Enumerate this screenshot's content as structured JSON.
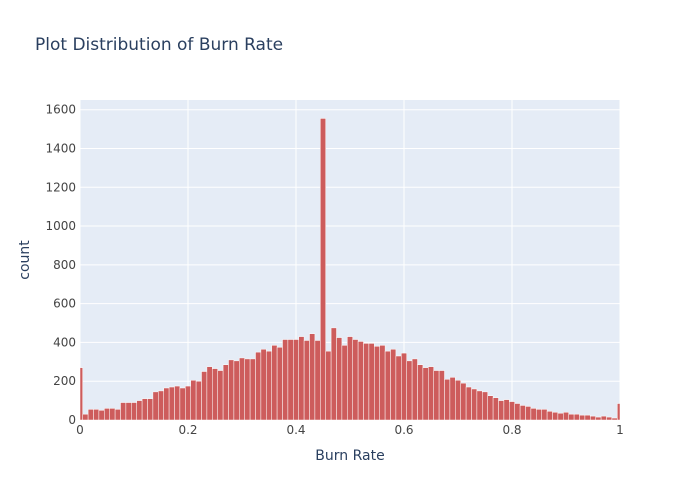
{
  "chart_data": {
    "type": "bar",
    "title": "Plot Distribution of Burn Rate",
    "xlabel": "Burn Rate",
    "ylabel": "count",
    "xlim": [
      0,
      1
    ],
    "ylim": [
      0,
      1650
    ],
    "x_ticks": [
      0,
      0.2,
      0.4,
      0.6,
      0.8,
      1
    ],
    "x_tick_labels": [
      "0",
      "0.2",
      "0.4",
      "0.6",
      "0.8",
      "1"
    ],
    "y_ticks": [
      0,
      200,
      400,
      600,
      800,
      1000,
      1200,
      1400,
      1600
    ],
    "y_tick_labels": [
      "0",
      "200",
      "400",
      "600",
      "800",
      "1000",
      "1200",
      "1400",
      "1600"
    ],
    "grid": true,
    "bar_color": "#cd5c5c",
    "bar_outline": "#ffffff",
    "plot_bg": "#e5ecf6",
    "grid_color": "#ffffff",
    "text_color": "#2a3f5f",
    "bins": {
      "start": 0,
      "end": 1,
      "count": 101
    },
    "values": [
      270,
      30,
      55,
      55,
      50,
      60,
      60,
      55,
      90,
      90,
      90,
      100,
      110,
      110,
      145,
      150,
      165,
      170,
      175,
      165,
      175,
      205,
      200,
      250,
      275,
      265,
      255,
      285,
      310,
      305,
      320,
      315,
      315,
      350,
      365,
      355,
      385,
      375,
      415,
      415,
      415,
      430,
      410,
      445,
      410,
      1555,
      355,
      475,
      425,
      385,
      430,
      415,
      405,
      395,
      395,
      380,
      385,
      355,
      365,
      330,
      345,
      305,
      315,
      285,
      270,
      275,
      255,
      255,
      210,
      220,
      205,
      190,
      170,
      160,
      150,
      145,
      125,
      115,
      100,
      105,
      95,
      85,
      75,
      70,
      60,
      55,
      55,
      45,
      40,
      35,
      40,
      30,
      30,
      25,
      25,
      20,
      15,
      20,
      15,
      10,
      85
    ]
  }
}
